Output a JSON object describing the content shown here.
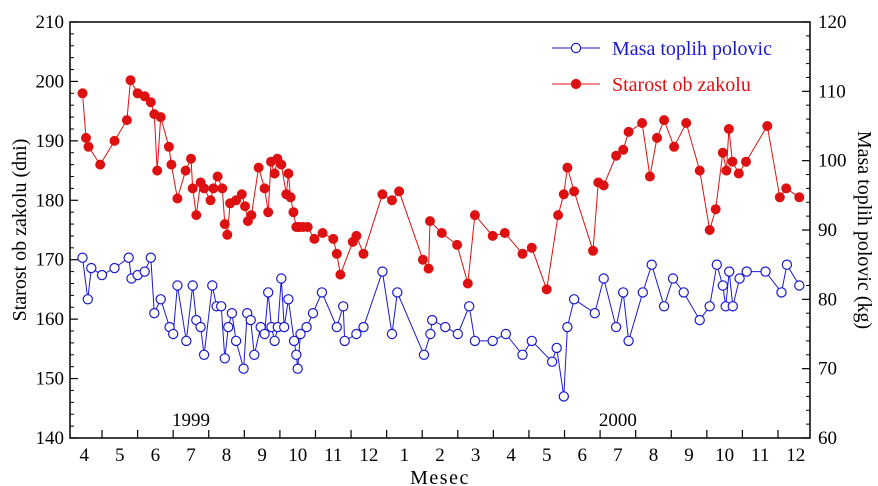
{
  "chart_data": {
    "type": "line",
    "xlabel": "Mesec",
    "ylabel_left": "Starost ob zakolu (dni)",
    "ylabel_right": "Masa toplih polovic (kg)",
    "x_ticks": [
      "4",
      "5",
      "6",
      "7",
      "8",
      "9",
      "10",
      "11",
      "12",
      "1",
      "2",
      "3",
      "4",
      "5",
      "6",
      "7",
      "8",
      "9",
      "10",
      "11",
      "12"
    ],
    "x_range": [
      3.6,
      24.4
    ],
    "year_labels": [
      {
        "text": "1999",
        "x": 7
      },
      {
        "text": "2000",
        "x": 19
      }
    ],
    "yleft_lim": [
      140,
      210
    ],
    "yleft_ticks": [
      140,
      150,
      160,
      170,
      180,
      190,
      200,
      210
    ],
    "yright_lim": [
      60,
      120
    ],
    "yright_ticks": [
      60,
      70,
      80,
      90,
      100,
      110,
      120
    ],
    "series": [
      {
        "name": "Masa toplih polovic",
        "axis": "right",
        "color": "#1a1acc",
        "marker": "open-circle",
        "x": [
          3.95,
          4.1,
          4.2,
          4.5,
          4.85,
          5.25,
          5.33,
          5.5,
          5.7,
          5.87,
          5.97,
          6.15,
          6.4,
          6.5,
          6.62,
          6.87,
          7.05,
          7.15,
          7.27,
          7.37,
          7.6,
          7.72,
          7.85,
          7.95,
          8.05,
          8.15,
          8.27,
          8.48,
          8.58,
          8.68,
          8.78,
          8.96,
          9.07,
          9.17,
          9.26,
          9.35,
          9.44,
          9.54,
          9.62,
          9.74,
          9.9,
          9.96,
          10.0,
          10.08,
          10.25,
          10.43,
          10.68,
          11.1,
          11.28,
          11.32,
          11.65,
          11.85,
          12.38,
          12.65,
          12.8,
          13.55,
          13.73,
          13.78,
          14.15,
          14.5,
          14.82,
          14.98,
          15.48,
          15.85,
          16.32,
          16.58,
          17.15,
          17.28,
          17.48,
          17.58,
          17.77,
          18.35,
          18.6,
          18.95,
          19.15,
          19.3,
          19.7,
          19.95,
          20.3,
          20.55,
          20.85,
          21.3,
          21.58,
          21.78,
          21.95,
          22.03,
          22.13,
          22.23,
          22.42,
          22.62,
          23.15,
          23.6,
          23.75,
          24.1
        ],
        "y": [
          86,
          80,
          84.5,
          83.5,
          84.5,
          86,
          83,
          83.5,
          84,
          86,
          78,
          80,
          76,
          75,
          82,
          74,
          82,
          77,
          76,
          72,
          82,
          79,
          79,
          71.5,
          76,
          78,
          74,
          70,
          78,
          77,
          72,
          76,
          75,
          81,
          76,
          74,
          76,
          83,
          76,
          80,
          74,
          72,
          70,
          75,
          76,
          78,
          81,
          76,
          79,
          74,
          75,
          76,
          84,
          75,
          81,
          72,
          75,
          77,
          76,
          75,
          79,
          74,
          74,
          75,
          72,
          74,
          71,
          73,
          66,
          76,
          80,
          78,
          83,
          76,
          81,
          74,
          81,
          85,
          79,
          83,
          81,
          77,
          79,
          85,
          82,
          79,
          84,
          79,
          83,
          84,
          84,
          81,
          85,
          82
        ]
      },
      {
        "name": "Starost ob zakolu",
        "axis": "left",
        "color": "#dd1111",
        "marker": "filled-circle",
        "x": [
          3.95,
          4.05,
          4.12,
          4.45,
          4.85,
          5.2,
          5.3,
          5.5,
          5.7,
          5.87,
          5.97,
          6.05,
          6.15,
          6.38,
          6.45,
          6.62,
          6.85,
          7.0,
          7.05,
          7.15,
          7.27,
          7.37,
          7.55,
          7.63,
          7.75,
          7.88,
          7.95,
          8.02,
          8.1,
          8.27,
          8.43,
          8.52,
          8.6,
          8.7,
          8.9,
          9.07,
          9.17,
          9.25,
          9.35,
          9.43,
          9.54,
          9.68,
          9.74,
          9.8,
          9.88,
          9.96,
          10.02,
          10.05,
          10.15,
          10.28,
          10.47,
          10.7,
          11.0,
          11.1,
          11.2,
          11.55,
          11.65,
          11.85,
          12.38,
          12.65,
          12.85,
          13.52,
          13.68,
          13.72,
          14.05,
          14.48,
          14.78,
          14.98,
          15.48,
          15.82,
          16.32,
          16.58,
          17.0,
          17.32,
          17.48,
          17.58,
          17.77,
          18.3,
          18.45,
          18.6,
          18.95,
          19.15,
          19.3,
          19.68,
          19.9,
          20.1,
          20.3,
          20.58,
          20.92,
          21.3,
          21.58,
          21.75,
          21.95,
          22.05,
          22.12,
          22.22,
          22.4,
          22.6,
          23.2,
          23.55,
          23.73,
          24.1
        ],
        "y": [
          198,
          190.5,
          189,
          186,
          190,
          193.5,
          200.2,
          198,
          197.5,
          196.5,
          194.5,
          185,
          194,
          189,
          186,
          180.3,
          185,
          187,
          182,
          177.5,
          183,
          182,
          180,
          182,
          184,
          182,
          176,
          174.2,
          179.5,
          180,
          181,
          179,
          176.5,
          177.5,
          185.5,
          182,
          178,
          186.5,
          184.5,
          187,
          186,
          181,
          184.5,
          180.5,
          178,
          175.5,
          175.5,
          175.5,
          175.5,
          175.5,
          173.5,
          174.5,
          173.5,
          171,
          167.5,
          173,
          174,
          171,
          181,
          180,
          181.5,
          170,
          168.5,
          176.5,
          174.5,
          172.5,
          166,
          177.5,
          174,
          174.5,
          171,
          172,
          165,
          177.5,
          181,
          185.5,
          181.5,
          171.5,
          183,
          182.5,
          187.5,
          188.5,
          191.5,
          193,
          184,
          190.5,
          193.5,
          189,
          193,
          185,
          175,
          178.5,
          188,
          185,
          192,
          186.5,
          184.5,
          186.5,
          192.5,
          180.5,
          182,
          180.5
        ]
      }
    ],
    "legend": [
      {
        "label": "Masa toplih polovic",
        "color": "#1a1acc",
        "marker": "open-circle"
      },
      {
        "label": "Starost ob zakolu",
        "color": "#dd1111",
        "marker": "filled-circle"
      }
    ],
    "legend_position": "top-right",
    "grid": false
  }
}
